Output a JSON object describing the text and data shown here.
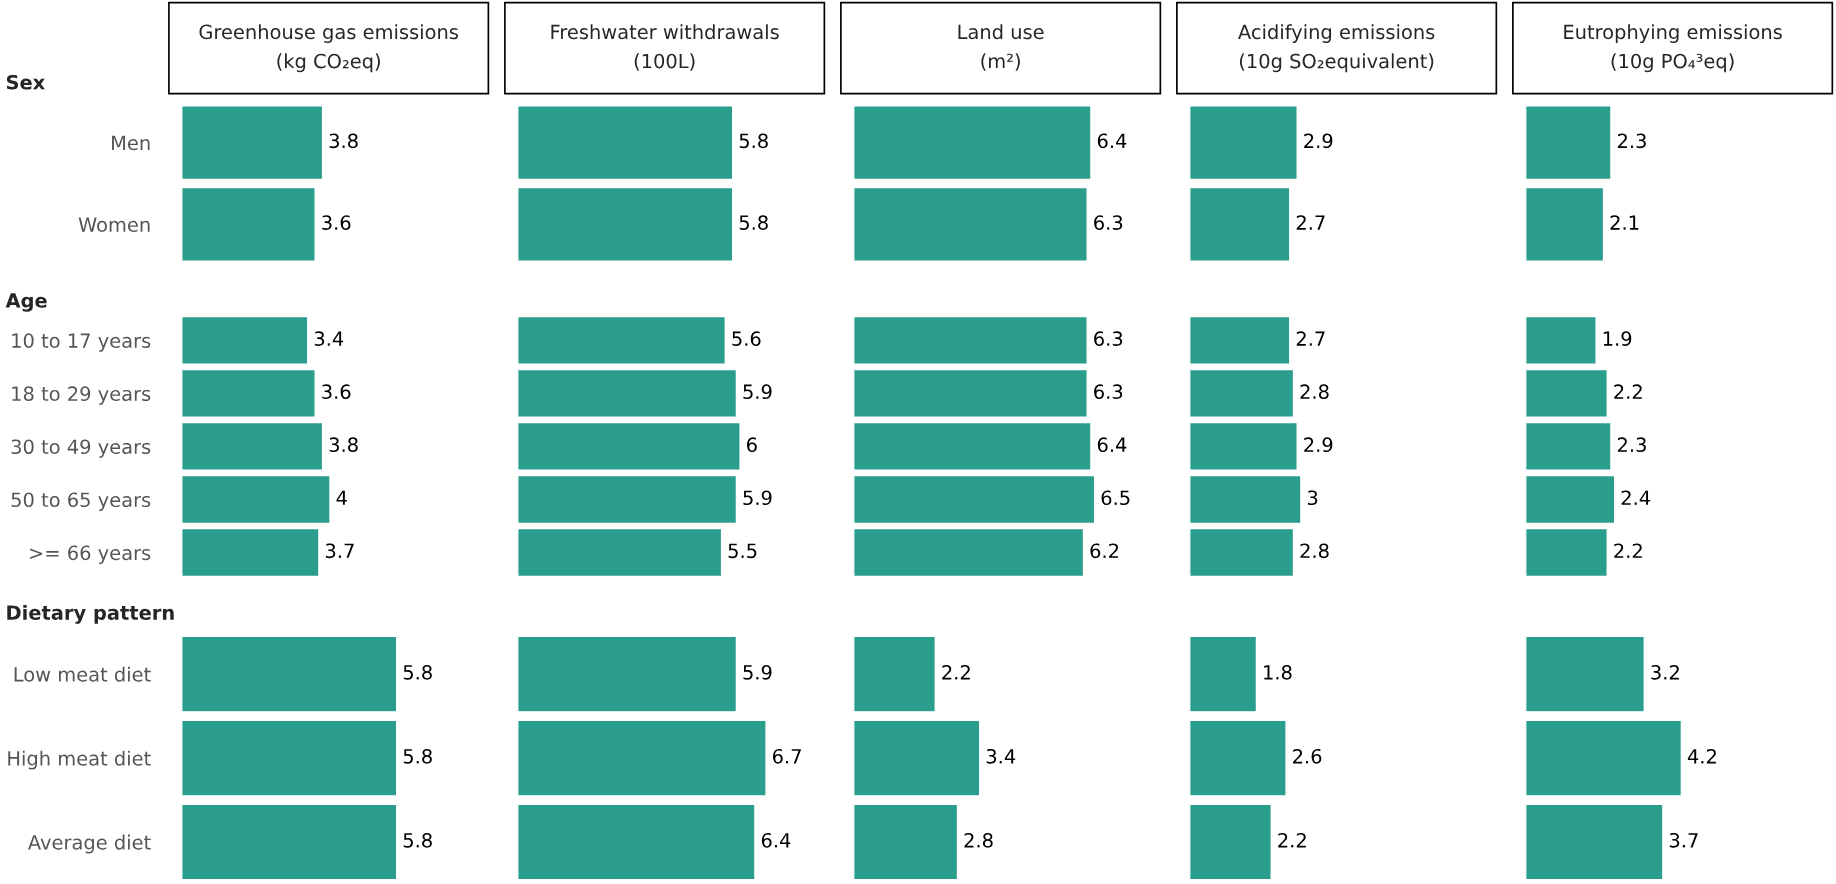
{
  "chart_data": [
    {
      "type": "bar",
      "orientation": "horizontal",
      "title": "Greenhouse gas emissions\n(kg CO₂eq)",
      "subtitle": "Sex",
      "categories": [
        "Men",
        "Women"
      ],
      "values": [
        3.8,
        3.6
      ],
      "color": "#2a9d8c",
      "data_labels": true,
      "tick_labels": "y"
    },
    {
      "type": "bar",
      "orientation": "horizontal",
      "title": "Freshwater withdrawals\n(100L)",
      "categories": [
        null,
        null
      ],
      "values": [
        5.8,
        5.8
      ],
      "color": "#2a9d8c",
      "data_labels": true,
      "tick_labels": false
    },
    {
      "type": "bar",
      "orientation": "horizontal",
      "title": "Land use\n(m²)",
      "categories": [
        null,
        null
      ],
      "values": [
        6.4,
        6.3
      ],
      "color": "#2a9d8c",
      "data_labels": true,
      "tick_labels": false
    },
    {
      "type": "bar",
      "orientation": "horizontal",
      "title": "Acidifying emissions\n(10g SO₂equivalent)",
      "categories": [
        null,
        null
      ],
      "values": [
        2.9,
        2.7
      ],
      "color": "#2a9d8c",
      "data_labels": true,
      "tick_labels": false
    },
    {
      "type": "bar",
      "orientation": "horizontal",
      "title": "Eutrophying emissions\n(10g PO₄³eq)",
      "categories": [
        null,
        null
      ],
      "values": [
        2.3,
        2.1
      ],
      "color": "#2a9d8c",
      "data_labels": true,
      "tick_labels": false
    },
    {
      "type": "bar",
      "orientation": "horizontal",
      "subtitle": "Age",
      "categories": [
        "10 to 17 years",
        "18 to 29 years",
        "30 to 49 years",
        "50 to 65 years",
        ">= 66 years"
      ],
      "values": [
        3.4,
        3.6,
        3.8,
        4,
        3.7
      ],
      "color": "#2a9d8c",
      "data_labels": true,
      "tick_labels": "y"
    },
    {
      "type": "bar",
      "orientation": "horizontal",
      "categories": [
        null,
        null,
        null,
        null,
        null
      ],
      "values": [
        5.6,
        5.9,
        6,
        5.9,
        5.5
      ],
      "color": "#2a9d8c",
      "data_labels": true,
      "tick_labels": false
    },
    {
      "type": "bar",
      "orientation": "horizontal",
      "categories": [
        null,
        null,
        null,
        null,
        null
      ],
      "values": [
        6.3,
        6.3,
        6.4,
        6.5,
        6.2
      ],
      "color": "#2a9d8c",
      "data_labels": true,
      "tick_labels": false
    },
    {
      "type": "bar",
      "orientation": "horizontal",
      "categories": [
        null,
        null,
        null,
        null,
        null
      ],
      "values": [
        2.7,
        2.8,
        2.9,
        3,
        2.8
      ],
      "color": "#2a9d8c",
      "data_labels": true,
      "tick_labels": false
    },
    {
      "type": "bar",
      "orientation": "horizontal",
      "categories": [
        null,
        null,
        null,
        null,
        null
      ],
      "values": [
        1.9,
        2.2,
        2.3,
        2.4,
        2.2
      ],
      "color": "#2a9d8c",
      "data_labels": true,
      "tick_labels": false
    },
    {
      "type": "bar",
      "orientation": "horizontal",
      "subtitle": "Dietary pattern",
      "categories": [
        "Low meat diet",
        "High meat diet",
        "Average diet"
      ],
      "values": [
        5.8,
        5.8,
        5.8
      ],
      "color": "#2a9d8c",
      "data_labels": true,
      "tick_labels": "y"
    },
    {
      "type": "bar",
      "orientation": "horizontal",
      "categories": [
        null,
        null,
        null
      ],
      "values": [
        5.9,
        6.7,
        6.4
      ],
      "color": "#2a9d8c",
      "data_labels": true,
      "tick_labels": false
    },
    {
      "type": "bar",
      "orientation": "horizontal",
      "categories": [
        null,
        null,
        null
      ],
      "values": [
        2.2,
        3.4,
        2.8
      ],
      "color": "#2a9d8c",
      "data_labels": true,
      "tick_labels": false
    },
    {
      "type": "bar",
      "orientation": "horizontal",
      "categories": [
        null,
        null,
        null
      ],
      "values": [
        1.8,
        2.6,
        2.2
      ],
      "color": "#2a9d8c",
      "data_labels": true,
      "tick_labels": false
    },
    {
      "type": "bar",
      "orientation": "horizontal",
      "categories": [
        null,
        null,
        null
      ],
      "values": [
        3.2,
        4.2,
        3.7
      ],
      "color": "#2a9d8c",
      "data_labels": true,
      "tick_labels": false
    }
  ]
}
